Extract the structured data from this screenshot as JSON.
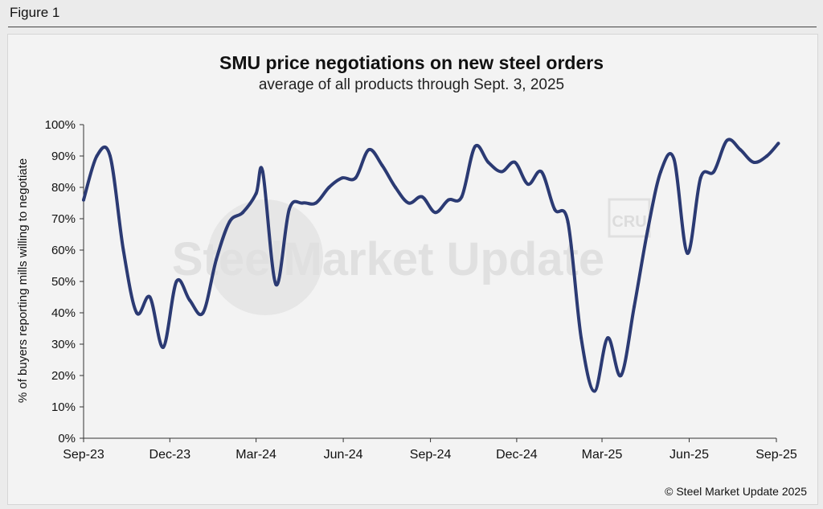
{
  "header": {
    "figure_label": "Figure 1"
  },
  "footer": {
    "credit": "© Steel Market Update 2025"
  },
  "watermark": {
    "text": "SteelMarket Update",
    "logo": "CRU"
  },
  "colors": {
    "line": "#2b3a73",
    "background": "#f3f3f3",
    "axis": "#333333"
  },
  "chart_data": {
    "type": "line",
    "title": "SMU price negotiations on new steel orders",
    "subtitle": "average of all products through Sept. 3, 2025",
    "xlabel": "",
    "ylabel": "% of buyers reporting mills willing to negotiate",
    "ylim": [
      0,
      100
    ],
    "y_ticks": [
      "0%",
      "10%",
      "20%",
      "30%",
      "40%",
      "50%",
      "60%",
      "70%",
      "80%",
      "90%",
      "100%"
    ],
    "x_ticks": [
      "Sep-23",
      "Dec-23",
      "Mar-24",
      "Jun-24",
      "Sep-24",
      "Dec-24",
      "Mar-25",
      "Jun-25",
      "Sep-25"
    ],
    "grid": false,
    "legend": "none",
    "series": [
      {
        "values": [
          {
            "x": "2023-09-01",
            "y": 76
          },
          {
            "x": "2023-09-15",
            "y": 90
          },
          {
            "x": "2023-09-29",
            "y": 90
          },
          {
            "x": "2023-10-13",
            "y": 60
          },
          {
            "x": "2023-10-27",
            "y": 40
          },
          {
            "x": "2023-11-10",
            "y": 45
          },
          {
            "x": "2023-11-24",
            "y": 29
          },
          {
            "x": "2023-12-08",
            "y": 50
          },
          {
            "x": "2023-12-22",
            "y": 44
          },
          {
            "x": "2024-01-05",
            "y": 40
          },
          {
            "x": "2024-01-19",
            "y": 57
          },
          {
            "x": "2024-02-02",
            "y": 69
          },
          {
            "x": "2024-02-16",
            "y": 72
          },
          {
            "x": "2024-03-01",
            "y": 78
          },
          {
            "x": "2024-03-08",
            "y": 85
          },
          {
            "x": "2024-03-22",
            "y": 49
          },
          {
            "x": "2024-04-05",
            "y": 73
          },
          {
            "x": "2024-04-19",
            "y": 75
          },
          {
            "x": "2024-05-03",
            "y": 75
          },
          {
            "x": "2024-05-17",
            "y": 80
          },
          {
            "x": "2024-05-31",
            "y": 83
          },
          {
            "x": "2024-06-14",
            "y": 83
          },
          {
            "x": "2024-06-28",
            "y": 92
          },
          {
            "x": "2024-07-12",
            "y": 87
          },
          {
            "x": "2024-07-26",
            "y": 80
          },
          {
            "x": "2024-08-09",
            "y": 75
          },
          {
            "x": "2024-08-23",
            "y": 77
          },
          {
            "x": "2024-09-06",
            "y": 72
          },
          {
            "x": "2024-09-20",
            "y": 76
          },
          {
            "x": "2024-10-04",
            "y": 77
          },
          {
            "x": "2024-10-18",
            "y": 93
          },
          {
            "x": "2024-11-01",
            "y": 88
          },
          {
            "x": "2024-11-15",
            "y": 85
          },
          {
            "x": "2024-11-29",
            "y": 88
          },
          {
            "x": "2024-12-13",
            "y": 81
          },
          {
            "x": "2024-12-27",
            "y": 85
          },
          {
            "x": "2025-01-10",
            "y": 73
          },
          {
            "x": "2025-01-24",
            "y": 69
          },
          {
            "x": "2025-02-07",
            "y": 32
          },
          {
            "x": "2025-02-21",
            "y": 15
          },
          {
            "x": "2025-03-07",
            "y": 32
          },
          {
            "x": "2025-03-21",
            "y": 20
          },
          {
            "x": "2025-04-04",
            "y": 42
          },
          {
            "x": "2025-04-18",
            "y": 66
          },
          {
            "x": "2025-05-02",
            "y": 85
          },
          {
            "x": "2025-05-16",
            "y": 89
          },
          {
            "x": "2025-05-30",
            "y": 59
          },
          {
            "x": "2025-06-13",
            "y": 83
          },
          {
            "x": "2025-06-27",
            "y": 85
          },
          {
            "x": "2025-07-11",
            "y": 95
          },
          {
            "x": "2025-07-25",
            "y": 92
          },
          {
            "x": "2025-08-08",
            "y": 88
          },
          {
            "x": "2025-08-22",
            "y": 90
          },
          {
            "x": "2025-09-03",
            "y": 94
          }
        ]
      }
    ]
  }
}
